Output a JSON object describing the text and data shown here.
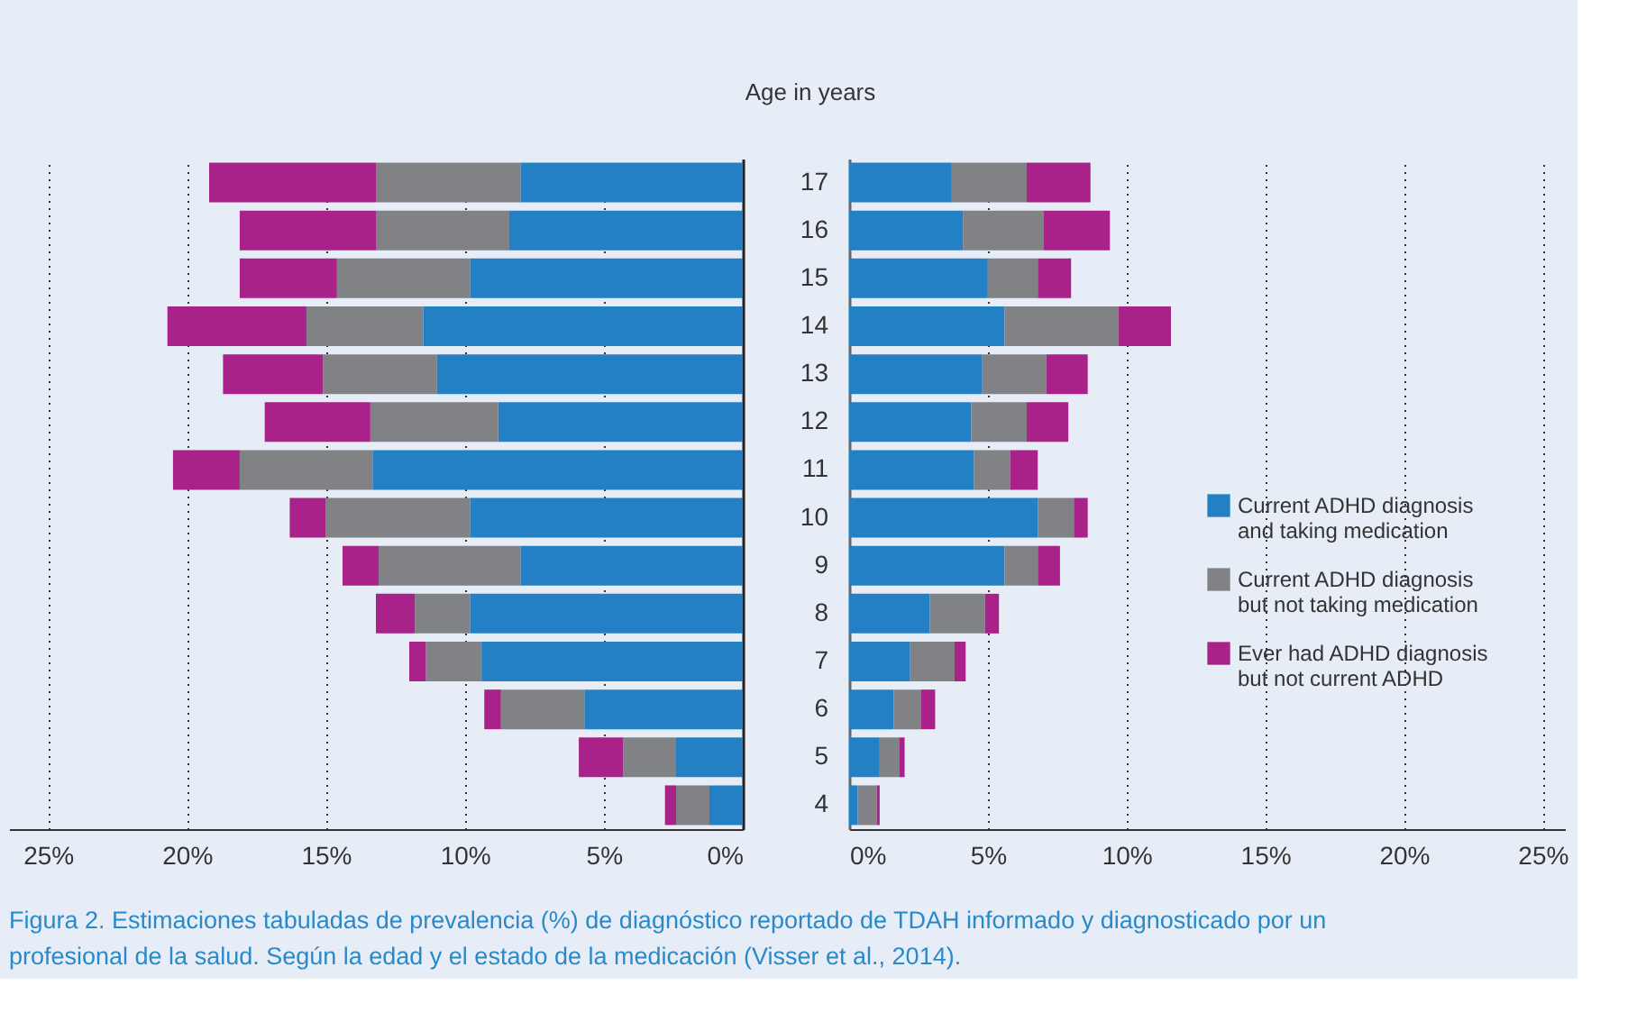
{
  "chart_data": [
    {
      "type": "bar",
      "orientation": "horizontal",
      "stacked": true,
      "categories": [
        "17",
        "16",
        "15",
        "14",
        "13",
        "12",
        "11",
        "10",
        "9",
        "8",
        "7",
        "6",
        "5",
        "4"
      ],
      "series": [
        {
          "color": "#2480c5",
          "values": [
            8.0,
            8.4,
            9.8,
            11.5,
            11.0,
            8.8,
            13.3,
            9.8,
            8.0,
            9.8,
            9.4,
            5.7,
            2.4,
            1.2
          ]
        },
        {
          "color": "#818285",
          "values": [
            5.2,
            4.8,
            4.8,
            4.2,
            4.1,
            4.6,
            4.8,
            5.2,
            5.1,
            2.0,
            2.0,
            3.0,
            1.9,
            1.2
          ]
        },
        {
          "color": "#a8228a",
          "values": [
            6.0,
            4.9,
            3.5,
            5.0,
            3.6,
            3.8,
            2.4,
            1.3,
            1.3,
            1.4,
            0.6,
            0.6,
            1.6,
            0.4
          ]
        }
      ],
      "xlim": [
        26.4,
        0
      ],
      "xticks": [
        {
          "value": 25,
          "label": "25%"
        },
        {
          "value": 20,
          "label": "20%"
        },
        {
          "value": 15,
          "label": "15%"
        },
        {
          "value": 10,
          "label": "10%"
        },
        {
          "value": 5,
          "label": "5%"
        },
        {
          "value": 0,
          "label": "0%"
        }
      ],
      "grid": "x",
      "tick_labels": "x",
      "annotations": [
        "Figura 2. Estimaciones tabuladas de prevalencia (%) de diagnóstico reportado de TDAH informado y diagnosticado por un profesional de la salud. Según la edad y el estado de la medicación (Visser et al., 2014)."
      ]
    },
    {
      "type": "bar",
      "orientation": "horizontal",
      "stacked": true,
      "ylabel": "Age in years",
      "categories": [
        "17",
        "16",
        "15",
        "14",
        "13",
        "12",
        "11",
        "10",
        "9",
        "8",
        "7",
        "6",
        "5",
        "4"
      ],
      "series": [
        {
          "name": "Current ADHD diagnosis and taking medication",
          "color": "#2480c5",
          "values": [
            3.7,
            4.1,
            5.0,
            5.6,
            4.8,
            4.4,
            4.5,
            6.8,
            5.6,
            2.9,
            2.2,
            1.6,
            1.1,
            0.3
          ]
        },
        {
          "name": "Current ADHD diagnosis but not taking medication",
          "color": "#818285",
          "values": [
            2.7,
            2.9,
            1.8,
            4.1,
            2.3,
            2.0,
            1.3,
            1.3,
            1.2,
            2.0,
            1.6,
            1.0,
            0.7,
            0.7
          ]
        },
        {
          "name": "Ever had ADHD diagnosis but not current ADHD",
          "color": "#a8228a",
          "values": [
            2.3,
            2.4,
            1.2,
            1.9,
            1.5,
            1.5,
            1.0,
            0.5,
            0.8,
            0.5,
            0.4,
            0.5,
            0.2,
            0.1
          ]
        }
      ],
      "xlim": [
        0,
        25.8
      ],
      "xticks": [
        {
          "value": 0,
          "label": "0%"
        },
        {
          "value": 5,
          "label": "5%"
        },
        {
          "value": 10,
          "label": "10%"
        },
        {
          "value": 15,
          "label": "15%"
        },
        {
          "value": 20,
          "label": "20%"
        },
        {
          "value": 25,
          "label": "25%"
        }
      ],
      "grid": "x",
      "legend": "right"
    }
  ]
}
